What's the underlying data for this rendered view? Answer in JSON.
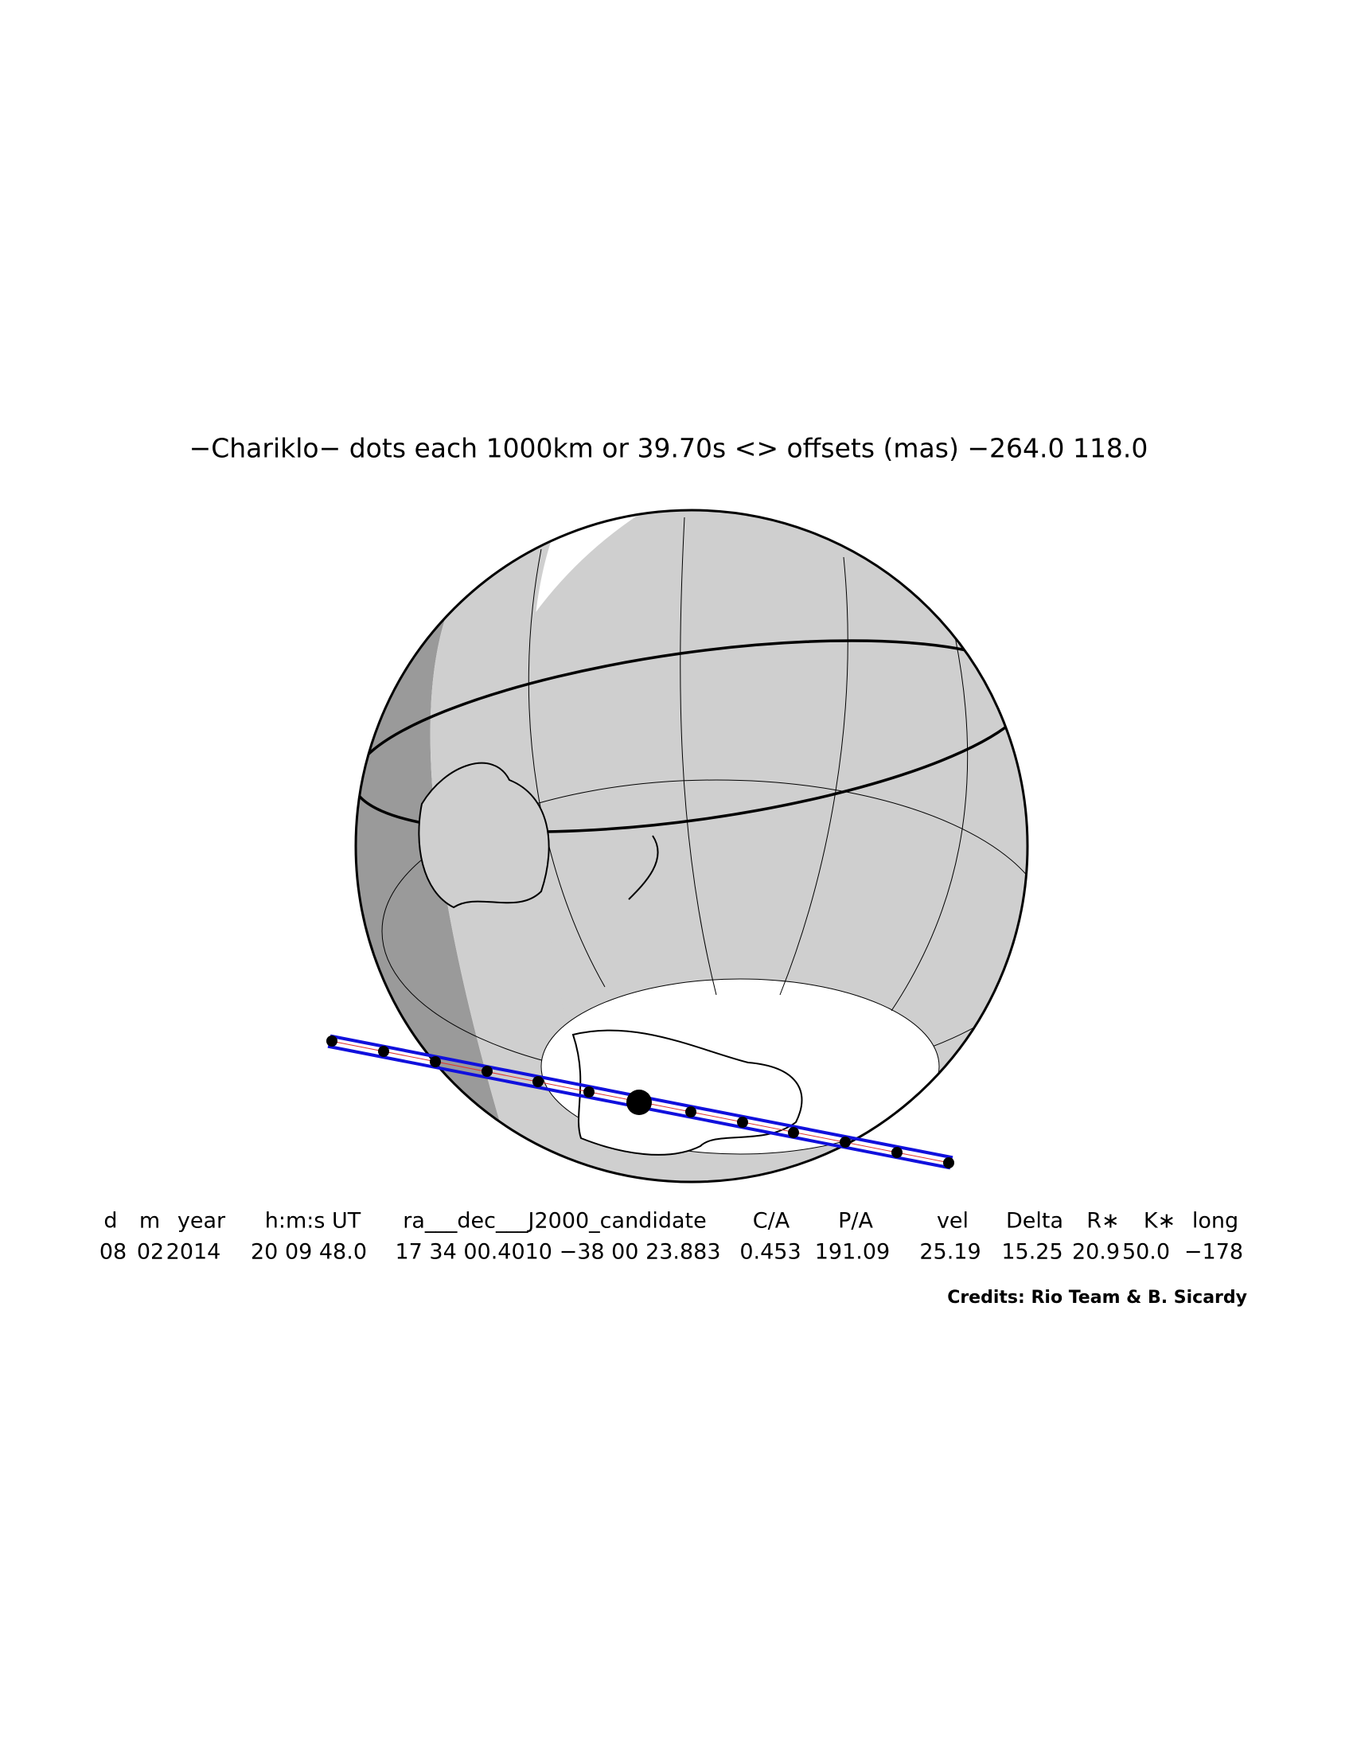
{
  "header": {
    "title": "−Chariklo− dots each 1000km or 39.70s <> offsets (mas) −264.0  118.0"
  },
  "table": {
    "columns": [
      "d",
      "m",
      "year",
      "h:m:s UT",
      "ra___dec___J2000_candidate",
      "C/A",
      "P/A",
      "vel",
      "Delta",
      "R∗",
      "K∗",
      "long"
    ],
    "values": [
      "08",
      "02",
      "2014",
      "20 09 48.0",
      "17 34 00.4010 −38 00 23.883",
      "0.453",
      "191.09",
      "25.19",
      "15.25",
      "20.9",
      "50.0",
      "−178"
    ]
  },
  "credits": "Credits: Rio Team & B. Sicardy"
}
